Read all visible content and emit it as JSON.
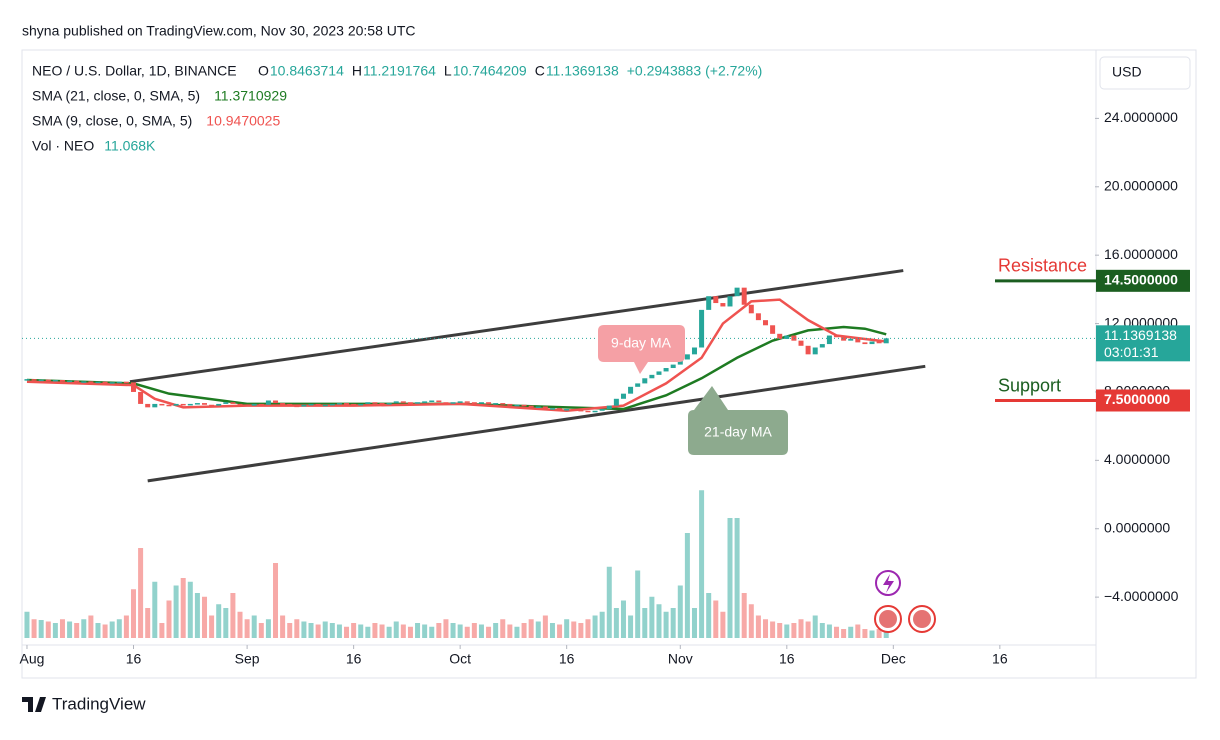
{
  "header": {
    "published": "shyna published on TradingView.com, Nov 30, 2023 20:58 UTC",
    "button": "USD",
    "brand": "TradingView"
  },
  "chart_data": {
    "type": "candlestick",
    "symbol": "NEO / U.S. Dollar, 1D, BINANCE",
    "ohlc": [
      {
        "label": "O",
        "value": 10.8463714
      },
      {
        "label": "H",
        "value": 11.2191764
      },
      {
        "label": "L",
        "value": 10.7464209
      },
      {
        "label": "C",
        "value": 11.1369138
      }
    ],
    "change": {
      "value": 0.2943883,
      "label": "+0.2943883"
    },
    "change_pct": {
      "value": 2.72,
      "label": "(+2.72%)"
    },
    "volume_legend": {
      "name": "Vol · NEO",
      "value": 11068,
      "label": "11.068K"
    },
    "up_color": "#26a69a",
    "down_color": "#ef5350",
    "candles": {
      "first_open": 8.7,
      "close": [
        8.75,
        8.7,
        8.72,
        8.68,
        8.7,
        8.65,
        8.66,
        8.6,
        8.62,
        8.58,
        8.6,
        8.55,
        8.57,
        8.6,
        8.56,
        8.0,
        7.3,
        7.1,
        7.3,
        7.25,
        7.2,
        7.3,
        7.25,
        7.3,
        7.35,
        7.25,
        7.2,
        7.3,
        7.4,
        7.3,
        7.25,
        7.2,
        7.3,
        7.25,
        7.5,
        7.35,
        7.3,
        7.2,
        7.15,
        7.25,
        7.3,
        7.2,
        7.25,
        7.3,
        7.35,
        7.3,
        7.25,
        7.3,
        7.4,
        7.35,
        7.3,
        7.35,
        7.45,
        7.4,
        7.35,
        7.4,
        7.45,
        7.5,
        7.4,
        7.35,
        7.4,
        7.45,
        7.4,
        7.35,
        7.4,
        7.3,
        7.35,
        7.3,
        7.2,
        7.25,
        7.2,
        7.1,
        7.15,
        7.0,
        7.05,
        6.95,
        7.0,
        6.95,
        6.9,
        6.85,
        6.9,
        7.0,
        7.2,
        7.6,
        7.9,
        8.3,
        8.5,
        8.8,
        9.0,
        9.2,
        9.4,
        9.6,
        9.9,
        10.2,
        10.6,
        12.8,
        13.6,
        13.2,
        13.0,
        13.6,
        14.1,
        13.1,
        12.6,
        12.2,
        11.9,
        11.4,
        11.1,
        11.3,
        11.0,
        10.7,
        10.2,
        10.6,
        10.8,
        11.3,
        11.2,
        11.0,
        11.1,
        10.9,
        10.8,
        10.95,
        10.8463714,
        11.1369138
      ],
      "volume_k": [
        35,
        25,
        24,
        22,
        20,
        25,
        22,
        20,
        25,
        30,
        20,
        18,
        22,
        25,
        30,
        65,
        120,
        40,
        75,
        20,
        50,
        70,
        80,
        75,
        60,
        55,
        30,
        45,
        40,
        60,
        35,
        25,
        30,
        20,
        25,
        100,
        30,
        20,
        25,
        22,
        20,
        18,
        22,
        20,
        18,
        15,
        20,
        18,
        15,
        20,
        18,
        15,
        22,
        18,
        15,
        20,
        18,
        15,
        20,
        25,
        20,
        18,
        15,
        20,
        18,
        15,
        20,
        25,
        18,
        15,
        20,
        25,
        22,
        30,
        20,
        18,
        25,
        22,
        20,
        25,
        30,
        35,
        95,
        40,
        50,
        30,
        90,
        40,
        55,
        45,
        35,
        40,
        70,
        140,
        40,
        197,
        60,
        50,
        35,
        160,
        160,
        60,
        45,
        30,
        25,
        22,
        20,
        18,
        20,
        25,
        22,
        30,
        20,
        18,
        15,
        12,
        15,
        18,
        12,
        10,
        12,
        11.068
      ]
    },
    "sma": [
      {
        "name": "SMA (21, close, 0, SMA, 5)",
        "last": 11.3710929,
        "color": "#1e7b22",
        "x": [
          0,
          15,
          20,
          31,
          46,
          61,
          76,
          84,
          90,
          95,
          100,
          105,
          110,
          115,
          118,
          121
        ],
        "values": [
          8.7,
          8.5,
          7.9,
          7.3,
          7.3,
          7.3,
          7.1,
          7.0,
          7.8,
          8.8,
          10.0,
          11.0,
          11.6,
          11.8,
          11.7,
          11.37
        ]
      },
      {
        "name": "SMA (9, close, 0, SMA, 5)",
        "last": 10.9470025,
        "color": "#ef5350",
        "x": [
          0,
          15,
          18,
          22,
          31,
          46,
          61,
          76,
          84,
          90,
          95,
          98,
          102,
          106,
          110,
          114,
          118,
          121
        ],
        "values": [
          8.6,
          8.4,
          7.6,
          7.1,
          7.2,
          7.2,
          7.3,
          6.9,
          7.2,
          8.5,
          10.0,
          12.0,
          13.3,
          13.4,
          12.2,
          11.3,
          11.1,
          10.95
        ]
      }
    ],
    "trend_lines": [
      {
        "x": [
          14.5,
          123.4
        ],
        "values": [
          8.6,
          15.1
        ]
      },
      {
        "x": [
          17,
          126.5
        ],
        "values": [
          2.8,
          9.5
        ]
      }
    ],
    "levels": [
      {
        "name": "Resistance",
        "value": 14.5,
        "label": "14.5000000",
        "color": "#1b5e20",
        "text_color": "#e53935"
      },
      {
        "name": "Support",
        "value": 7.5,
        "label": "7.5000000",
        "color": "#e53935",
        "text_color": "#1b5e20"
      }
    ],
    "last_price": {
      "value": 11.1369138,
      "label": "11.1369138",
      "countdown": "03:01:31",
      "color": "#26a69a"
    },
    "annotations": [
      "9-day MA",
      "21-day MA"
    ],
    "xlim": [
      -0.7,
      150.4
    ],
    "xticks": [
      {
        "value": 0,
        "label": "Aug"
      },
      {
        "value": 15,
        "label": "16"
      },
      {
        "value": 31,
        "label": "Sep"
      },
      {
        "value": 46,
        "label": "16"
      },
      {
        "value": 61,
        "label": "Oct"
      },
      {
        "value": 76,
        "label": "16"
      },
      {
        "value": 92,
        "label": "Nov"
      },
      {
        "value": 107,
        "label": "16"
      },
      {
        "value": 122,
        "label": "Dec"
      },
      {
        "value": 137,
        "label": "16"
      }
    ],
    "ylim": [
      -6.8,
      28
    ],
    "yticks": [
      {
        "value": -4,
        "label": "−4.0000000"
      },
      {
        "value": 0,
        "label": "0.0000000"
      },
      {
        "value": 4,
        "label": "4.0000000"
      },
      {
        "value": 8,
        "label": "8.0000000"
      },
      {
        "value": 12,
        "label": "12.0000000"
      },
      {
        "value": 16,
        "label": "16.0000000"
      },
      {
        "value": 20,
        "label": "20.0000000"
      },
      {
        "value": 24,
        "label": "24.0000000"
      }
    ]
  }
}
